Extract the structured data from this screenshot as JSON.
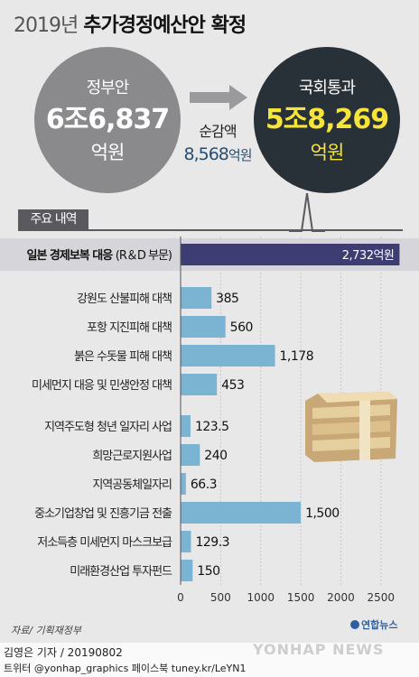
{
  "header": {
    "year": "2019년",
    "title": "추가경정예산안 확정"
  },
  "government": {
    "label": "정부안",
    "amount": "6조6,837",
    "unit": "억원"
  },
  "national_assembly": {
    "label": "국회통과",
    "amount": "5조8,269",
    "unit": "억원"
  },
  "net_cut": {
    "label": "순감액",
    "amount": "8,568",
    "unit": "억원"
  },
  "section_label": "주요 내역",
  "colors": {
    "bar": "#7bb3d3",
    "main_bar": "#3e3d73",
    "gov_circle": "#8a8a8d",
    "nat_circle": "#293138",
    "highlight": "#f7e43a"
  },
  "chart_data": {
    "type": "bar",
    "orientation": "horizontal",
    "unit": "억원",
    "xlim": [
      0,
      2750
    ],
    "ticks": [
      0,
      500,
      1000,
      1500,
      2000,
      2500
    ],
    "main_item": {
      "label": "일본 경제보복 대응",
      "note": "(R＆D 부문)",
      "value": 2732,
      "value_label": "2,732억원"
    },
    "categories": [
      "강원도 산불피해 대책",
      "포항 지진피해 대책",
      "붉은 수돗물 피해 대책",
      "미세먼지 대응 및 민생안정 대책",
      "지역주도형 청년 일자리 사업",
      "희망근로지원사업",
      "지역공동체일자리",
      "중소기업창업 및 진흥기금 전출",
      "저소득층 미세먼지 마스크보급",
      "미래환경산업 투자펀드"
    ],
    "values": [
      385,
      560,
      1178,
      453,
      123.5,
      240,
      66.3,
      1500,
      129.3,
      150
    ],
    "value_labels": [
      "385",
      "560",
      "1,178",
      "453",
      "123.5",
      "240",
      "66.3",
      "1,500",
      "129.3",
      "150"
    ]
  },
  "footer": {
    "source": "자료/ 기획재정부",
    "logo": "연합뉴스",
    "byline": "김영은 기자 / 20190802",
    "social": "트위터 @yonhap_graphics  페이스북 tuney.kr/LeYN1",
    "watermark": "YONHAP NEWS"
  }
}
